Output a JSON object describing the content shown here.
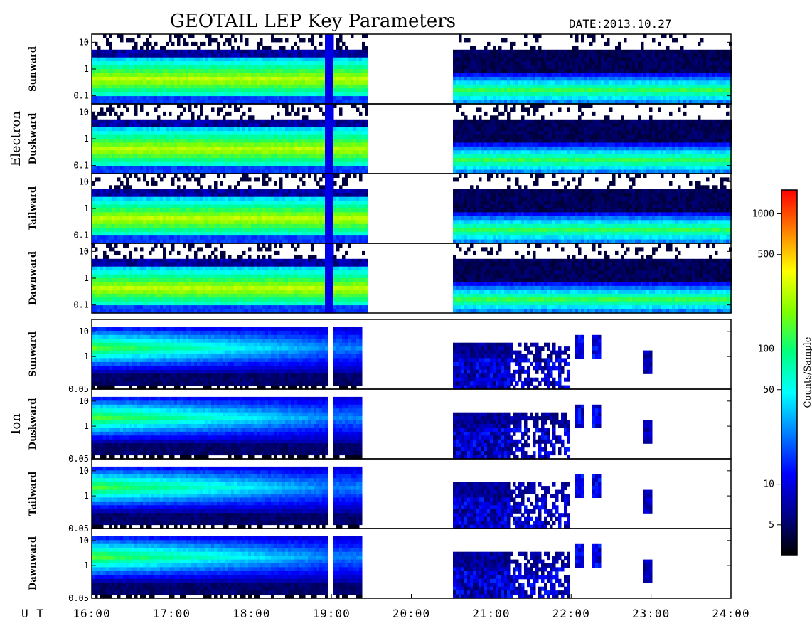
{
  "chart_data": {
    "type": "heatmap",
    "title": "GEOTAIL LEP Key Parameters",
    "date_label": "DATE:",
    "date_value": "2013.10.27",
    "x_axis_label": "U T",
    "x_range": [
      "16:00",
      "24:00"
    ],
    "x_ticks": [
      "16:00",
      "17:00",
      "18:00",
      "19:00",
      "20:00",
      "21:00",
      "22:00",
      "23:00",
      "24:00"
    ],
    "groups": [
      {
        "name": "Electron",
        "y_scale": "log",
        "y_range": [
          0.05,
          20
        ],
        "y_ticks": [
          "10",
          "1",
          "0.1"
        ],
        "panels": [
          "Sunward",
          "Duskward",
          "Tailward",
          "Dawnward"
        ],
        "data_gap": [
          "19:27",
          "20:30"
        ]
      },
      {
        "name": "Ion",
        "y_scale": "log",
        "y_range": [
          0.05,
          30
        ],
        "y_ticks": [
          "10",
          "1",
          "0.05"
        ],
        "panels": [
          "Sunward",
          "Duskward",
          "Tailward",
          "Dawnward"
        ],
        "data_gap": [
          "19:22",
          "20:30"
        ]
      }
    ],
    "colorbar": {
      "label": "Counts/Sample",
      "scale": "log",
      "range": [
        3,
        1500
      ],
      "ticks": [
        "1000",
        "500",
        "100",
        "50",
        "10",
        "5"
      ],
      "colors": [
        "#000000",
        "#00008b",
        "#0000ff",
        "#0080ff",
        "#00ffff",
        "#00ff80",
        "#80ff00",
        "#ffff00",
        "#ff8000",
        "#ff0000"
      ]
    }
  }
}
